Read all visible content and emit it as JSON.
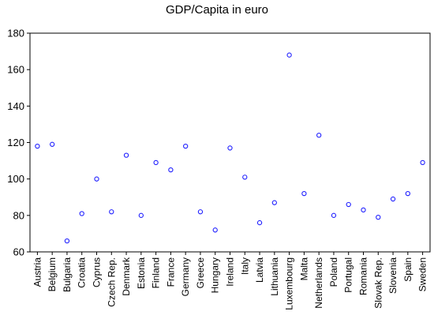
{
  "chart_data": {
    "type": "scatter",
    "title": "GDP/Capita in euro",
    "xlabel": "",
    "ylabel": "",
    "ylim": [
      60,
      180
    ],
    "yticks": [
      60,
      80,
      100,
      120,
      140,
      160,
      180
    ],
    "grid": false,
    "legend": "none",
    "marker_color": "#1f1fff",
    "categories": [
      "Austria",
      "Belgium",
      "Bulgaria",
      "Croatia",
      "Cyprus",
      "Czech Rep.",
      "Denmark",
      "Estonia",
      "Finland",
      "France",
      "Germany",
      "Greece",
      "Hungary",
      "Ireland",
      "Italy",
      "Latvia",
      "Lithuania",
      "Luxembourg",
      "Malta",
      "Netherlands",
      "Poland",
      "Portugal",
      "Romania",
      "Slovak Rep.",
      "Slovenia",
      "Spain",
      "Sweden"
    ],
    "values": [
      118,
      119,
      66,
      81,
      100,
      82,
      113,
      80,
      109,
      105,
      118,
      82,
      72,
      117,
      101,
      76,
      87,
      168,
      92,
      124,
      80,
      86,
      83,
      79,
      89,
      92,
      109
    ]
  }
}
